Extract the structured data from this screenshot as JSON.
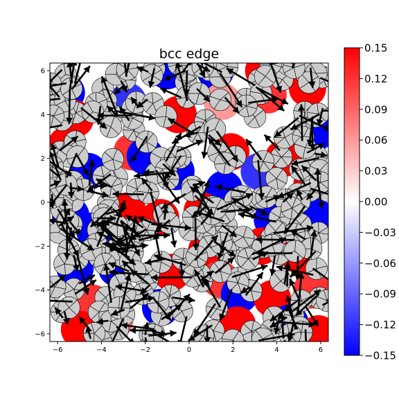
{
  "chart_data": {
    "type": "heatmap",
    "title": "bcc edge",
    "xlabel": "",
    "ylabel": "",
    "xlim": [
      -6.35,
      6.35
    ],
    "ylim": [
      -6.35,
      6.35
    ],
    "x_ticks": [
      {
        "v": -6,
        "label": "−6"
      },
      {
        "v": -4,
        "label": "−4"
      },
      {
        "v": -2,
        "label": "−2"
      },
      {
        "v": 0,
        "label": "0"
      },
      {
        "v": 2,
        "label": "2"
      },
      {
        "v": 4,
        "label": "4"
      },
      {
        "v": 6,
        "label": "6"
      }
    ],
    "y_ticks": [
      {
        "v": -6,
        "label": "−6"
      },
      {
        "v": -4,
        "label": "−4"
      },
      {
        "v": -2,
        "label": "−2"
      },
      {
        "v": 0,
        "label": "0"
      },
      {
        "v": 2,
        "label": "2"
      },
      {
        "v": 4,
        "label": "4"
      },
      {
        "v": 6,
        "label": "6"
      }
    ],
    "grid": false,
    "colorbar": {
      "colormap": "bwr",
      "vmin": -0.15,
      "vmax": 0.15,
      "ticks": [
        {
          "v": 0.15,
          "label": "0.15"
        },
        {
          "v": 0.12,
          "label": "0.12"
        },
        {
          "v": 0.09,
          "label": "0.09"
        },
        {
          "v": 0.06,
          "label": "0.06"
        },
        {
          "v": 0.03,
          "label": "0.03"
        },
        {
          "v": 0.0,
          "label": "0.00"
        },
        {
          "v": -0.03,
          "label": "−0.03"
        },
        {
          "v": -0.06,
          "label": "−0.06"
        },
        {
          "v": -0.09,
          "label": "−0.09"
        },
        {
          "v": -0.12,
          "label": "−0.12"
        },
        {
          "v": -0.15,
          "label": "−0.15"
        }
      ]
    },
    "background_field": [
      {
        "x": -5.6,
        "y": 5.0,
        "value": -0.15
      },
      {
        "x": -5.2,
        "y": 3.8,
        "value": 0.15
      },
      {
        "x": -5.6,
        "y": 2.6,
        "value": 0.15
      },
      {
        "x": -4.6,
        "y": 1.4,
        "value": -0.15
      },
      {
        "x": -5.4,
        "y": -0.6,
        "value": -0.15
      },
      {
        "x": -4.3,
        "y": -1.3,
        "value": -0.15
      },
      {
        "x": -5.2,
        "y": -3.0,
        "value": -0.15
      },
      {
        "x": -4.4,
        "y": -4.6,
        "value": 0.12
      },
      {
        "x": -5.0,
        "y": -5.8,
        "value": 0.15
      },
      {
        "x": -2.8,
        "y": 4.6,
        "value": -0.12
      },
      {
        "x": -2.6,
        "y": 2.3,
        "value": 0.12
      },
      {
        "x": -2.0,
        "y": 2.1,
        "value": -0.15
      },
      {
        "x": -2.8,
        "y": -0.4,
        "value": 0.15
      },
      {
        "x": -3.3,
        "y": -3.0,
        "value": -0.15
      },
      {
        "x": -3.4,
        "y": -5.4,
        "value": 0.09
      },
      {
        "x": -1.0,
        "y": 6.0,
        "value": -0.15
      },
      {
        "x": -0.5,
        "y": 4.0,
        "value": 0.15
      },
      {
        "x": -0.6,
        "y": 1.4,
        "value": -0.15
      },
      {
        "x": -1.3,
        "y": -0.7,
        "value": 0.15
      },
      {
        "x": -0.8,
        "y": -3.2,
        "value": 0.15
      },
      {
        "x": -1.3,
        "y": -4.8,
        "value": -0.15
      },
      {
        "x": 1.2,
        "y": 6.0,
        "value": -0.15
      },
      {
        "x": 1.5,
        "y": 4.6,
        "value": 0.06
      },
      {
        "x": 1.9,
        "y": 2.3,
        "value": 0.15
      },
      {
        "x": 1.6,
        "y": 0.6,
        "value": -0.15
      },
      {
        "x": 0.6,
        "y": -0.4,
        "value": 0.15
      },
      {
        "x": 0.8,
        "y": -2.2,
        "value": 0.15
      },
      {
        "x": 1.4,
        "y": -3.5,
        "value": 0.12
      },
      {
        "x": 2.3,
        "y": -4.2,
        "value": -0.15
      },
      {
        "x": 2.2,
        "y": -5.6,
        "value": 0.15
      },
      {
        "x": 3.4,
        "y": 6.0,
        "value": 0.15
      },
      {
        "x": 3.6,
        "y": 4.9,
        "value": 0.12
      },
      {
        "x": 3.2,
        "y": 1.4,
        "value": -0.12
      },
      {
        "x": 4.3,
        "y": 2.0,
        "value": 0.15
      },
      {
        "x": 3.8,
        "y": -0.8,
        "value": -0.15
      },
      {
        "x": 3.3,
        "y": -2.0,
        "value": 0.15
      },
      {
        "x": 3.8,
        "y": -4.4,
        "value": 0.15
      },
      {
        "x": 4.6,
        "y": -5.5,
        "value": -0.15
      },
      {
        "x": 5.4,
        "y": 5.2,
        "value": 0.15
      },
      {
        "x": 5.8,
        "y": 3.2,
        "value": -0.15
      },
      {
        "x": 5.6,
        "y": 0.8,
        "value": 0.15
      },
      {
        "x": 5.8,
        "y": -0.7,
        "value": -0.15
      },
      {
        "x": 5.0,
        "y": -2.4,
        "value": 0.15
      },
      {
        "x": 5.6,
        "y": -4.0,
        "value": 0.12
      },
      {
        "x": 5.9,
        "y": -6.0,
        "value": 0.15
      }
    ],
    "atoms": {
      "color": "#cccccc",
      "edge_color": "#000000",
      "radius": 0.5,
      "count": 235
    },
    "vectors": {
      "color": "#000000",
      "count": 260
    }
  }
}
